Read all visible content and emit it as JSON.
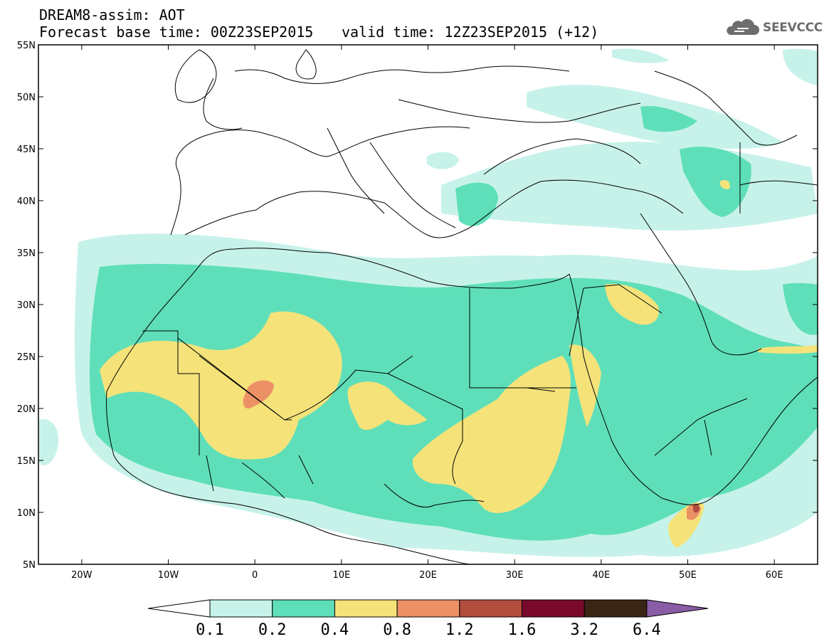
{
  "header": {
    "title": "DREAM8-assim: AOT",
    "base_time": "Forecast base time: 00Z23SEP2015",
    "valid_time": "valid time: 12Z23SEP2015 (+12)",
    "logo_text": "SEEVCCC",
    "logo_icon": "cloud-icon"
  },
  "map": {
    "region": "North Africa, Europe, Middle East",
    "lon_range": [
      -25,
      65
    ],
    "lat_range": [
      5,
      55
    ],
    "lat_ticks": [
      "5N",
      "10N",
      "15N",
      "20N",
      "25N",
      "30N",
      "35N",
      "40N",
      "45N",
      "50N",
      "55N"
    ],
    "lon_ticks": [
      "20W",
      "10W",
      "0",
      "10E",
      "20E",
      "30E",
      "40E",
      "50E",
      "60E"
    ],
    "lat_tick_values": [
      5,
      10,
      15,
      20,
      25,
      30,
      35,
      40,
      45,
      50,
      55
    ],
    "lon_tick_values": [
      -20,
      -10,
      0,
      10,
      20,
      30,
      40,
      50,
      60
    ]
  },
  "colorbar": {
    "labels": [
      "0.1",
      "0.2",
      "0.4",
      "0.8",
      "1.2",
      "1.6",
      "3.2",
      "6.4"
    ],
    "colors": [
      "#c7f2ea",
      "#5fdfb9",
      "#f5e37a",
      "#ec9166",
      "#b24c3c",
      "#7a0a2b",
      "#3a2414",
      "#8a5ca6"
    ],
    "under_color": "#ffffff",
    "over_color": "#8a5ca6"
  },
  "colors": {
    "lvl1": "#c7f2ea",
    "lvl2": "#5fdfb9",
    "lvl3": "#f5e37a",
    "lvl4": "#ec9166",
    "lvl5": "#b24c3c"
  }
}
